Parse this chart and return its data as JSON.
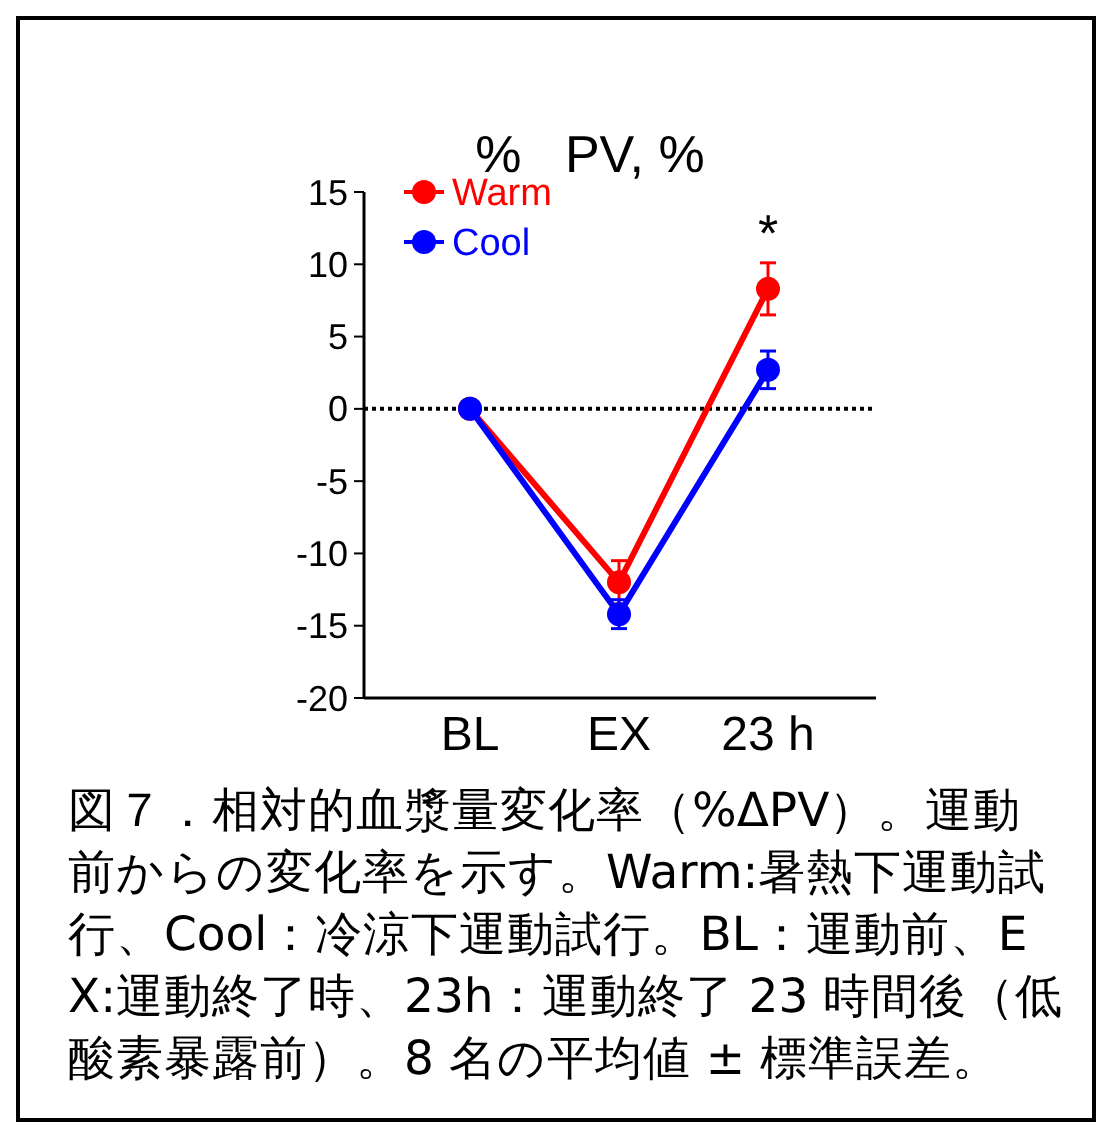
{
  "chart_data": {
    "type": "line",
    "title": "%   PV, %",
    "categories": [
      "BL",
      "EX",
      "23 h"
    ],
    "series": [
      {
        "name": "Warm",
        "color": "#ff0000",
        "values": [
          0,
          -12,
          8.3
        ],
        "errors": [
          null,
          1.5,
          1.8
        ]
      },
      {
        "name": "Cool",
        "color": "#0000ff",
        "values": [
          0,
          -14.2,
          2.7
        ],
        "errors": [
          null,
          1,
          1.3
        ]
      }
    ],
    "ylim": [
      -20,
      15
    ],
    "yticks": [
      -20,
      -15,
      -10,
      -5,
      0,
      5,
      10,
      15
    ],
    "grid": false,
    "legend": "top left",
    "marker": "circle",
    "line_style": "solid",
    "ref_lines": [
      {
        "axis": "y",
        "value": 0,
        "color": "#000000",
        "line_style": "dotted"
      }
    ],
    "annotations": [
      "*",
      "図７．相対的血漿量変化率（%ΔPV）。運動前からの変化率を示す。Warm:暑熱下運動試行、Cool：冷涼下運動試行。BL：運動前、EX:運動終了時、23h：運動終了 23 時間後（低酸素暴露前）。8 名の平均値 ± 標準誤差。"
    ]
  }
}
